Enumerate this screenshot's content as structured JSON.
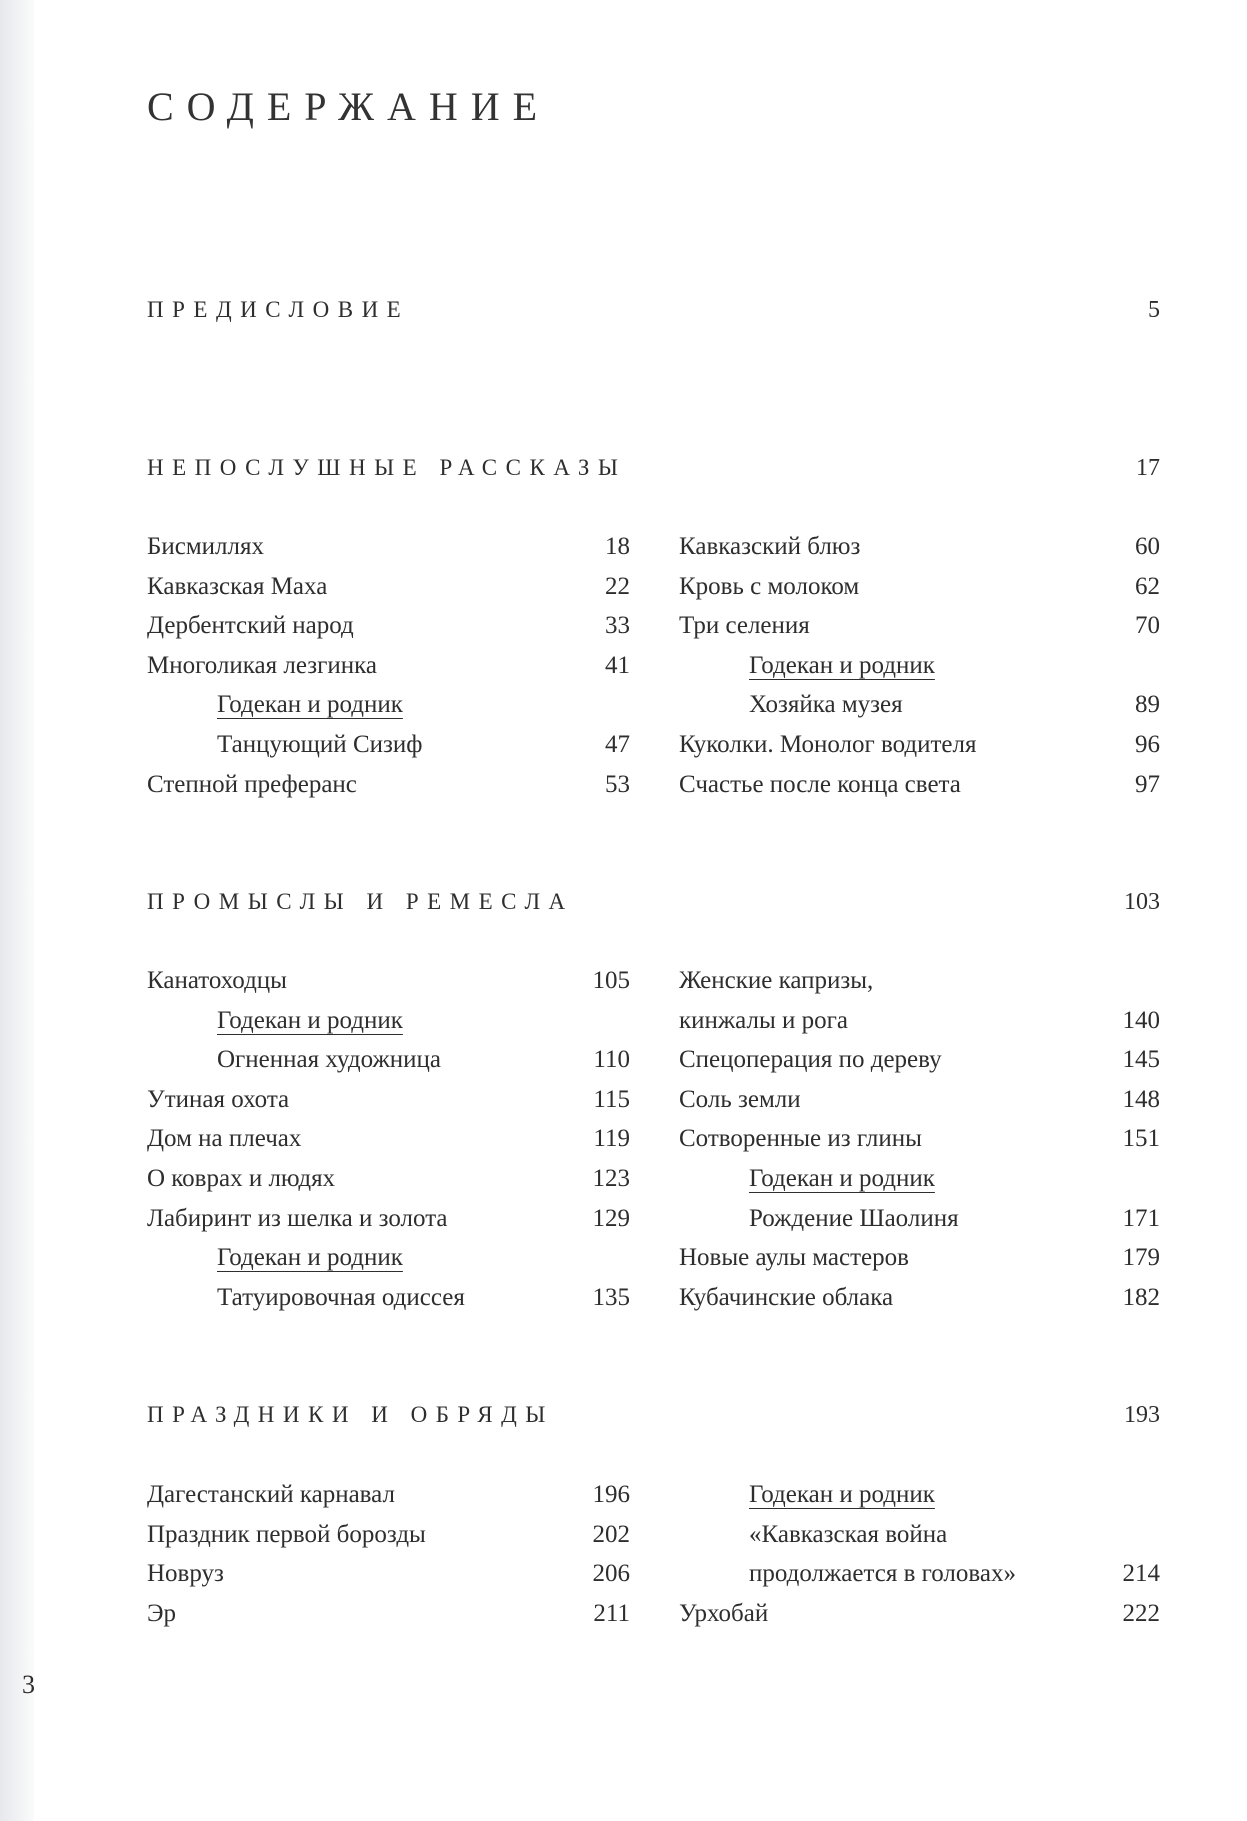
{
  "title": "СОДЕРЖАНИЕ",
  "page_number": "3",
  "sections": [
    {
      "heading": "ПРЕДИСЛОВИЕ",
      "page": "5",
      "left": [],
      "right": []
    },
    {
      "heading": "НЕПОСЛУШНЫЕ РАССКАЗЫ",
      "page": "17",
      "left": [
        {
          "text": "Бисмиллях",
          "page": "18"
        },
        {
          "text": "Кавказская Маха",
          "page": "22"
        },
        {
          "text": "Дербентский народ",
          "page": "33"
        },
        {
          "text": "Многоликая лезгинка",
          "page": "41"
        },
        {
          "text": "Годекан и родник",
          "page": "",
          "kind": "sub-heading"
        },
        {
          "text": "Танцующий Сизиф",
          "page": "47",
          "kind": "sub"
        },
        {
          "text": "Степной преферанс",
          "page": "53"
        }
      ],
      "right": [
        {
          "text": "Кавказский блюз",
          "page": "60"
        },
        {
          "text": "Кровь с молоком",
          "page": "62"
        },
        {
          "text": "Три селения",
          "page": "70"
        },
        {
          "text": "Годекан и родник",
          "page": "",
          "kind": "sub-heading"
        },
        {
          "text": "Хозяйка музея",
          "page": "89",
          "kind": "sub"
        },
        {
          "text": "Куколки. Монолог водителя",
          "page": "96"
        },
        {
          "text": "Счастье после конца света",
          "page": "97"
        }
      ]
    },
    {
      "heading": "ПРОМЫСЛЫ И РЕМЕСЛА",
      "page": "103",
      "left": [
        {
          "text": "Канатоходцы",
          "page": "105"
        },
        {
          "text": "Годекан и родник",
          "page": "",
          "kind": "sub-heading"
        },
        {
          "text": "Огненная художница",
          "page": "110",
          "kind": "sub"
        },
        {
          "text": "Утиная охота",
          "page": "115"
        },
        {
          "text": "Дом на плечах",
          "page": "119"
        },
        {
          "text": "О коврах и людях",
          "page": "123"
        },
        {
          "text": "Лабиринт из шелка и золота",
          "page": "129"
        },
        {
          "text": "Годекан и родник",
          "page": "",
          "kind": "sub-heading"
        },
        {
          "text": "Татуировочная одиссея",
          "page": "135",
          "kind": "sub"
        }
      ],
      "right": [
        {
          "text": "Женские капризы,",
          "page": ""
        },
        {
          "text": "кинжалы и рога",
          "page": "140"
        },
        {
          "text": "Спецоперация по дереву",
          "page": "145"
        },
        {
          "text": "Соль земли",
          "page": "148"
        },
        {
          "text": "Сотворенные из глины",
          "page": "151"
        },
        {
          "text": "Годекан и родник",
          "page": "",
          "kind": "sub-heading"
        },
        {
          "text": "Рождение Шаолиня",
          "page": "171",
          "kind": "sub"
        },
        {
          "text": "Новые аулы мастеров",
          "page": "179"
        },
        {
          "text": "Кубачинские облака",
          "page": "182"
        }
      ]
    },
    {
      "heading": "ПРАЗДНИКИ И ОБРЯДЫ",
      "page": "193",
      "left": [
        {
          "text": "Дагестанский карнавал",
          "page": "196"
        },
        {
          "text": "Праздник первой борозды",
          "page": "202"
        },
        {
          "text": "Новруз",
          "page": "206"
        },
        {
          "text": "Эр",
          "page": "211"
        }
      ],
      "right": [
        {
          "text": "Годекан и родник",
          "page": "",
          "kind": "sub-heading"
        },
        {
          "text": "«Кавказская война",
          "page": "",
          "kind": "sub"
        },
        {
          "text": "продолжается в головах»",
          "page": "214",
          "kind": "sub"
        },
        {
          "text": "Урхобай",
          "page": "222"
        }
      ]
    }
  ]
}
